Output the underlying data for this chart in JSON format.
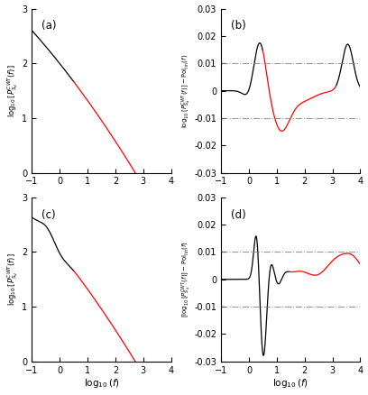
{
  "xlim": [
    -1,
    4
  ],
  "ylim_left": [
    0,
    3
  ],
  "ylim_right": [
    -0.03,
    0.03
  ],
  "yticks_left": [
    0,
    1,
    2,
    3
  ],
  "yticks_right": [
    -0.03,
    -0.02,
    -0.01,
    0,
    0.01,
    0.02,
    0.03
  ],
  "xticks": [
    -1,
    0,
    1,
    2,
    3,
    4
  ],
  "dash_levels": [
    0.01,
    -0.01
  ],
  "labels": [
    "(a)",
    "(b)",
    "(c)",
    "(d)"
  ],
  "red_start_a": 0.5,
  "red_end_a": 3.3,
  "red_start_b": 0.5,
  "red_end_b": 3.15,
  "red_start_c": 0.5,
  "red_end_c": 3.3,
  "red_start_d": 1.45,
  "red_end_d": 4.0
}
